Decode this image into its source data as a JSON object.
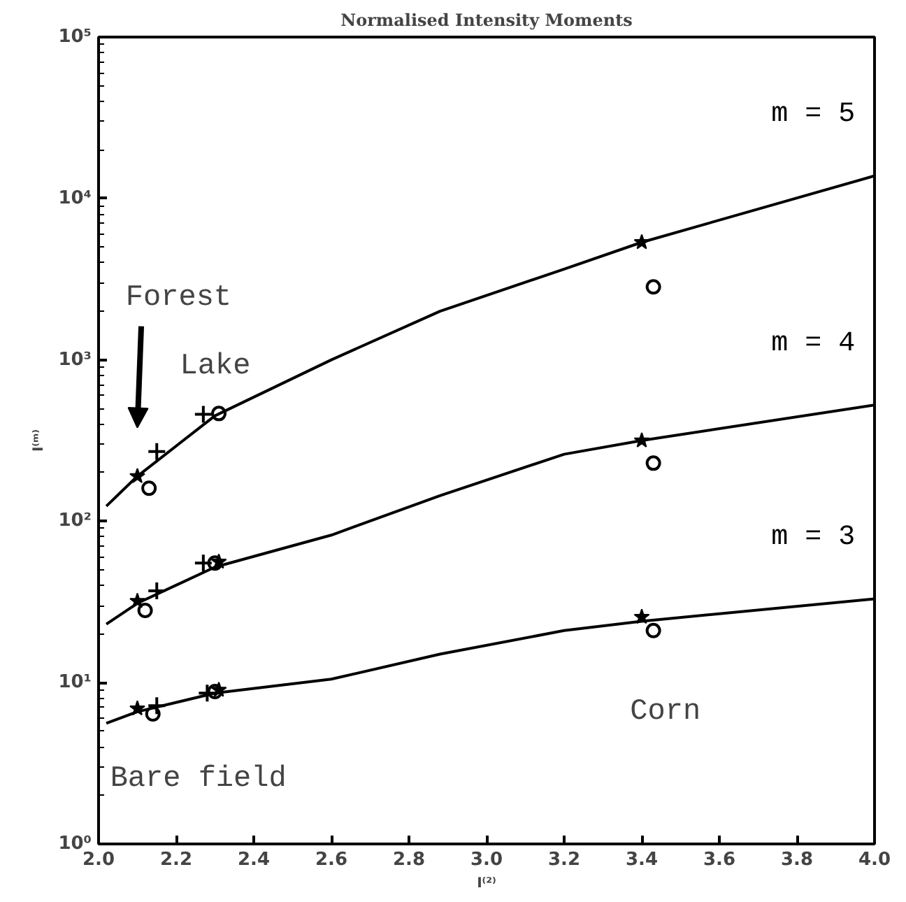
{
  "chart_data": {
    "type": "line",
    "title": "Normalised Intensity Moments",
    "xlabel": "I⁽²⁾",
    "ylabel": "I⁽ᵐ⁾",
    "log": "y",
    "grid": false,
    "xlim": [
      2.0,
      4.0
    ],
    "xticks": [
      {
        "value": 2,
        "label": "2.0"
      },
      2.2,
      2.4,
      2.6,
      2.8,
      {
        "value": 3,
        "label": "3.0"
      },
      3.2,
      3.4,
      3.6,
      3.8,
      {
        "value": 4,
        "label": "4.0"
      }
    ],
    "ylim": [
      1,
      100000
    ],
    "yticks": [
      {
        "value": 1,
        "label": "10⁰"
      },
      {
        "value": 10,
        "label": "10¹"
      },
      {
        "value": 100,
        "label": "10²"
      },
      {
        "value": 1000,
        "label": "10³"
      },
      {
        "value": 10000,
        "label": "10⁴"
      },
      {
        "value": 100000,
        "label": "10⁵"
      }
    ],
    "series": [
      {
        "name": "m = 5",
        "color": "#000000",
        "marker": "none",
        "x": [
          2.02,
          2.1,
          2.3,
          2.6,
          2.88,
          3.2,
          3.4,
          4.0
        ],
        "values": [
          124,
          190,
          450,
          1000,
          2000,
          3650,
          5350,
          13800
        ]
      },
      {
        "name": "m = 4",
        "color": "#000000",
        "marker": "none",
        "x": [
          2.02,
          2.1,
          2.3,
          2.6,
          2.88,
          3.2,
          3.4,
          4.0
        ],
        "values": [
          23,
          31,
          52,
          82,
          144,
          260,
          316,
          525
        ]
      },
      {
        "name": "m = 3",
        "color": "#000000",
        "marker": "none",
        "x": [
          2.02,
          2.1,
          2.3,
          2.6,
          2.88,
          3.2,
          3.4,
          4.0
        ],
        "values": [
          5.6,
          6.6,
          8.6,
          10.5,
          15,
          21,
          24,
          33
        ]
      },
      {
        "type": "scatter",
        "color": "#000000",
        "marker": "cross",
        "x": [
          2.15,
          2.27,
          2.15,
          2.27,
          2.15,
          2.28
        ],
        "values": [
          270,
          460,
          37,
          55,
          7.2,
          8.6
        ]
      },
      {
        "type": "scatter",
        "color": "#000000",
        "marker": "star",
        "x": [
          2.1,
          3.4,
          2.1,
          2.31,
          3.4,
          2.1,
          2.31,
          3.4
        ],
        "values": [
          190,
          5350,
          32,
          56,
          316,
          6.9,
          9.0,
          25.5
        ]
      },
      {
        "type": "scatter",
        "color": "#000000",
        "marker": "circle",
        "x": [
          2.13,
          2.31,
          3.43,
          2.12,
          2.3,
          3.43,
          2.14,
          2.3,
          3.43
        ],
        "values": [
          160,
          465,
          2830,
          28,
          55,
          229,
          6.4,
          8.8,
          21
        ]
      }
    ],
    "annotations": [
      "Forest",
      "Lake",
      "Corn",
      "Bare field"
    ]
  }
}
